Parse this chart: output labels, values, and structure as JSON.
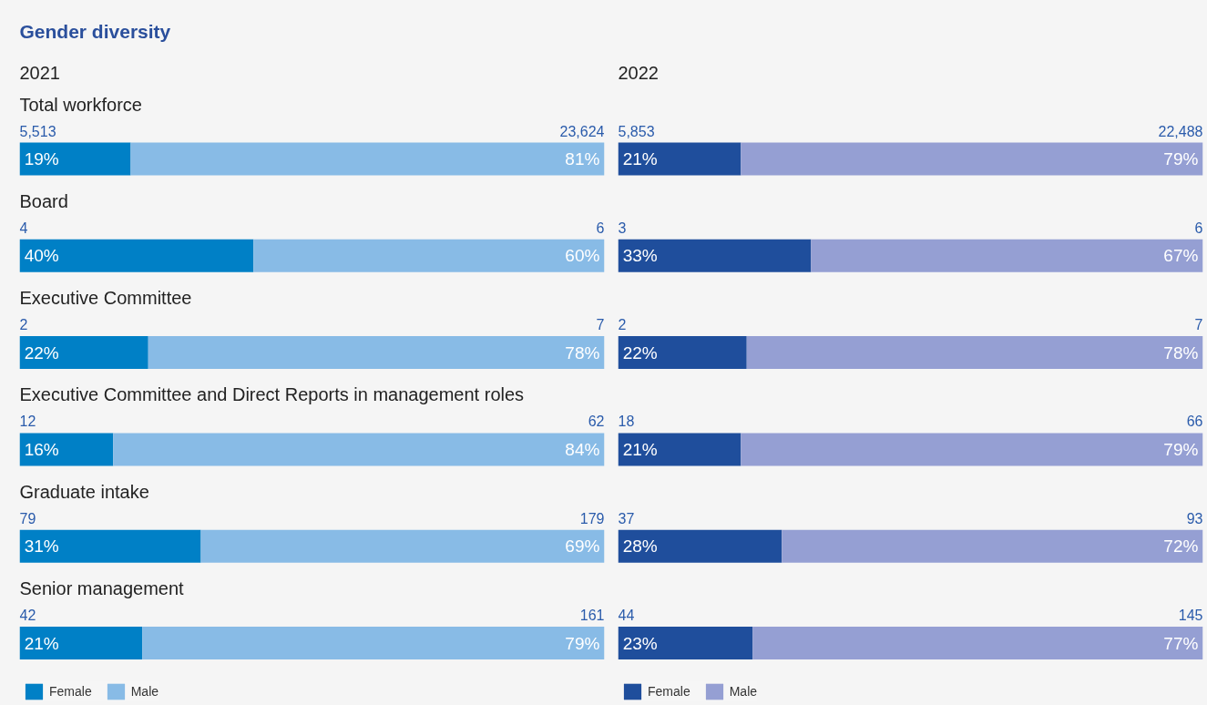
{
  "chart_data": [
    {
      "type": "bar",
      "orientation": "horizontal",
      "stacked": true,
      "title": "Gender diversity",
      "subtitle": "2021",
      "categories": [
        "Total workforce",
        "Board",
        "Executive Committee",
        "Executive Committee and Direct Reports in management roles",
        "Graduate intake",
        "Senior management"
      ],
      "series": [
        {
          "name": "Female",
          "color": "#0080c6",
          "values": [
            19,
            40,
            22,
            16,
            31,
            21
          ],
          "value_labels": [
            "19%",
            "40%",
            "22%",
            "16%",
            "31%",
            "21%"
          ]
        },
        {
          "name": "Male",
          "color": "#88bbe6",
          "values": [
            81,
            60,
            78,
            84,
            69,
            79
          ],
          "value_labels": [
            "81%",
            "60%",
            "78%",
            "84%",
            "69%",
            "79%"
          ]
        }
      ],
      "annotations": [
        "5,513",
        "23,624",
        "4",
        "6",
        "2",
        "7",
        "12",
        "62",
        "79",
        "179",
        "42",
        "161"
      ],
      "legend": "bottom left",
      "grid": false,
      "tick_labels": "y"
    },
    {
      "type": "bar",
      "orientation": "horizontal",
      "stacked": true,
      "subtitle": "2022",
      "categories": [
        null,
        null,
        null,
        null,
        null,
        null
      ],
      "series": [
        {
          "name": "Female",
          "color": "#1f4e9c",
          "values": [
            21,
            33,
            22,
            21,
            28,
            23
          ],
          "value_labels": [
            "21%",
            "33%",
            "22%",
            "21%",
            "28%",
            "23%"
          ]
        },
        {
          "name": "Male",
          "color": "#959fd3",
          "values": [
            79,
            67,
            78,
            79,
            72,
            77
          ],
          "value_labels": [
            "79%",
            "67%",
            "78%",
            "79%",
            "72%",
            "77%"
          ]
        }
      ],
      "annotations": [
        "5,853",
        "22,488",
        "3",
        "6",
        "2",
        "7",
        "18",
        "66",
        "37",
        "93",
        "44",
        "145"
      ],
      "legend": "bottom left",
      "grid": false
    }
  ]
}
